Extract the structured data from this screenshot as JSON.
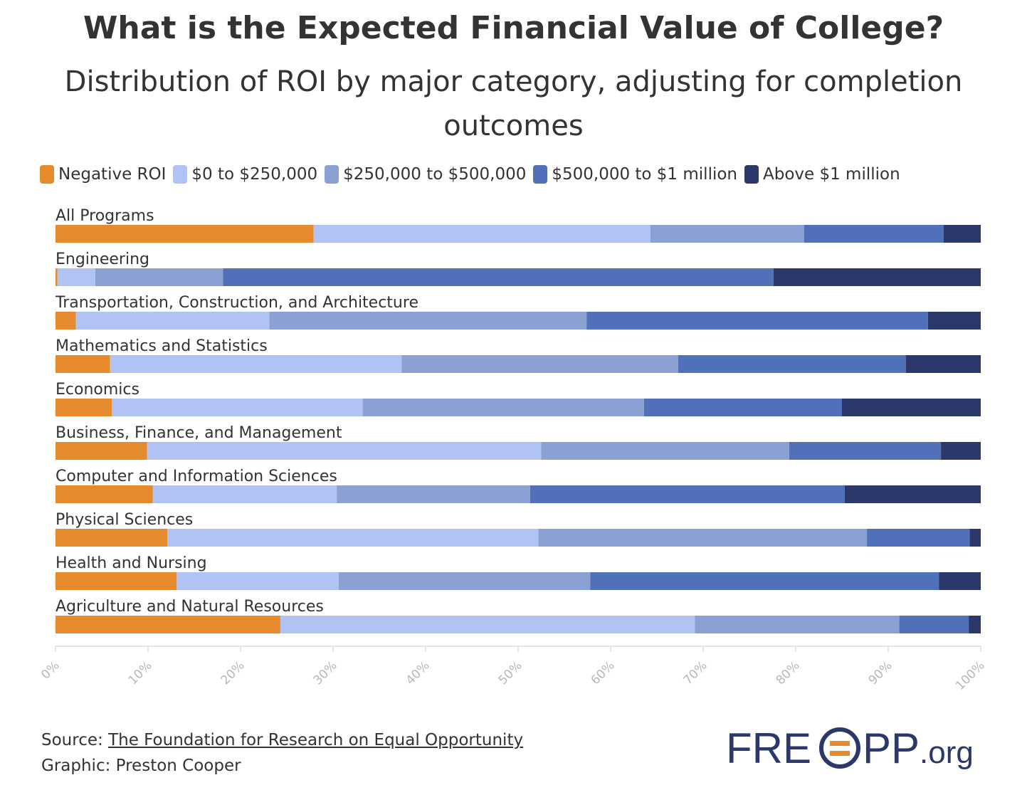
{
  "header": {
    "title": "What is the Expected Financial Value of College?",
    "subtitle": "Distribution of ROI by major category, adjusting for completion outcomes"
  },
  "footer": {
    "source_prefix": "Source:",
    "source_link": "The Foundation for Research on Equal Opportunity",
    "graphic_credit": "Graphic: Preston Cooper"
  },
  "logo": {
    "text_a": "FRE",
    "text_b": "PP",
    "text_c": ".org"
  },
  "colors": {
    "negative": "#e68a2e",
    "zero_to_250k": "#b1c3f2",
    "250k_to_500k": "#8ba1d4",
    "500k_to_1m": "#5070ba",
    "above_1m": "#2c3869",
    "logo_text": "#2c3869",
    "logo_accent": "#e68a2e"
  },
  "chart_data": {
    "type": "bar",
    "orientation": "horizontal",
    "stacked": "percent",
    "title": "What is the Expected Financial Value of College?",
    "subtitle": "Distribution of ROI by major category, adjusting for completion outcomes",
    "legend_position": "top-left",
    "categories": [
      "All Programs",
      "Engineering",
      "Transportation, Construction, and Architecture",
      "Mathematics and Statistics",
      "Economics",
      "Business, Finance, and Management",
      "Computer and Information Sciences",
      "Physical Sciences",
      "Health and Nursing",
      "Agriculture and Natural Resources"
    ],
    "series": [
      {
        "name": "Negative ROI",
        "color": "#e68a2e",
        "values": [
          27.9,
          0.2,
          2.2,
          5.9,
          6.1,
          9.9,
          10.5,
          12.1,
          13.1,
          24.3
        ]
      },
      {
        "name": "$0 to $250,000",
        "color": "#b1c3f2",
        "values": [
          36.4,
          4.1,
          20.9,
          31.5,
          27.1,
          42.6,
          19.9,
          40.1,
          17.5,
          44.8
        ]
      },
      {
        "name": "$250,000 to $500,000",
        "color": "#8ba1d4",
        "values": [
          16.6,
          13.8,
          34.3,
          29.9,
          30.4,
          26.8,
          20.9,
          35.5,
          27.2,
          22.1
        ]
      },
      {
        "name": "$500,000 to $1 million",
        "color": "#5070ba",
        "values": [
          15.1,
          59.5,
          36.9,
          24.6,
          21.4,
          16.4,
          34.0,
          11.1,
          37.7,
          7.5
        ]
      },
      {
        "name": "Above $1 million",
        "color": "#2c3869",
        "values": [
          4.0,
          22.4,
          5.7,
          8.1,
          15.0,
          4.3,
          14.7,
          1.2,
          4.5,
          1.3
        ]
      }
    ],
    "x_axis": {
      "min": 0,
      "max": 100,
      "ticks": [
        "0%",
        "10%",
        "20%",
        "30%",
        "40%",
        "50%",
        "60%",
        "70%",
        "80%",
        "90%",
        "100%"
      ]
    }
  }
}
